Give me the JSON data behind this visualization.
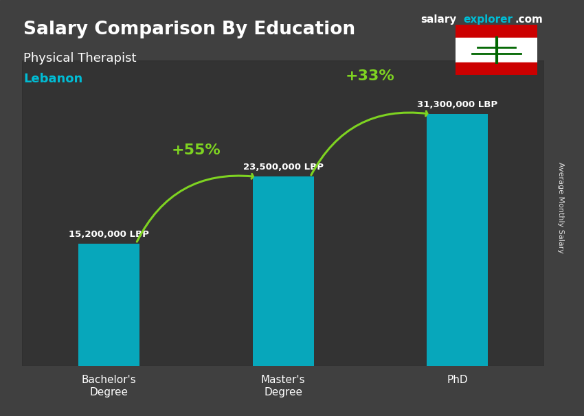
{
  "title": "Salary Comparison By Education",
  "subtitle": "Physical Therapist",
  "country": "Lebanon",
  "categories": [
    "Bachelor's\nDegree",
    "Master's\nDegree",
    "PhD"
  ],
  "values": [
    15200000,
    23500000,
    31300000
  ],
  "bar_color": "#00bcd4",
  "bar_width": 0.35,
  "value_labels": [
    "15,200,000 LBP",
    "23,500,000 LBP",
    "31,300,000 LBP"
  ],
  "pct_labels": [
    "+55%",
    "+33%"
  ],
  "xlabel": "",
  "ylabel": "Average Monthly Salary",
  "background_color": "#1a1a2e",
  "title_color": "#ffffff",
  "subtitle_color": "#ffffff",
  "country_color": "#00bcd4",
  "bar_label_color": "#ffffff",
  "arrow_color": "#7ed321",
  "pct_color": "#7ed321",
  "site_color_salary": "#ffffff",
  "site_color_explorer": "#00bcd4",
  "x_positions": [
    0,
    1,
    2
  ]
}
